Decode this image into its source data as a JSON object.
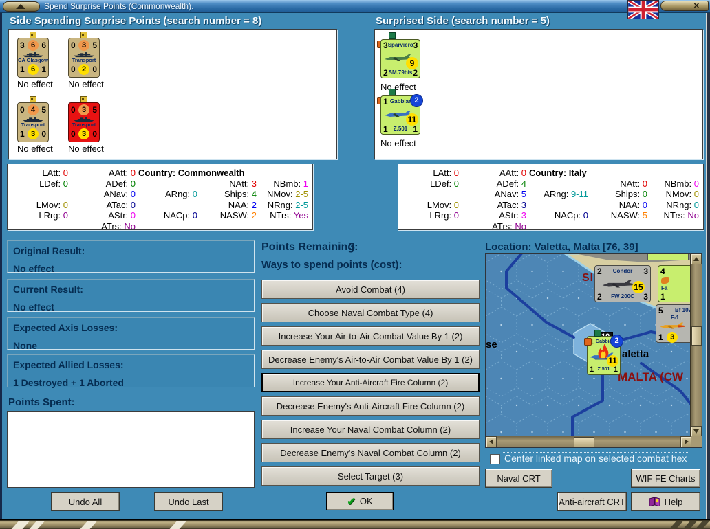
{
  "window": {
    "title": "Spend Surprise Points (Commonwealth).",
    "close_glyph": "✕"
  },
  "headers": {
    "spender": "Side Spending Surprise Points (search number = 8)",
    "surprised": "Surprised Side (search number = 5)"
  },
  "spender_units": [
    {
      "tl": "3",
      "tm": "6",
      "tr": "6",
      "name": "CA Glasgow",
      "bl": "1",
      "bm": "6",
      "br": "1",
      "status": "No effect",
      "variant": "tan"
    },
    {
      "tl": "0",
      "tm": "3",
      "tr": "5",
      "name": "Transport",
      "bl": "0",
      "bm": "2",
      "br": "0",
      "status": "No effect",
      "variant": "tan"
    },
    {
      "tl": "0",
      "tm": "4",
      "tr": "5",
      "name": "Transport",
      "bl": "1",
      "bm": "3",
      "br": "0",
      "status": "No effect",
      "variant": "tan"
    },
    {
      "tl": "0",
      "tm": "3",
      "tr": "5",
      "name": "Transport",
      "bl": "0",
      "bm": "3",
      "br": "0",
      "status": "No effect",
      "variant": "red"
    }
  ],
  "surprised_units": [
    {
      "tl": "3",
      "name": "Sparviero",
      "tr": "3",
      "mid": "9",
      "bl": "2",
      "bname": "SM.79bis",
      "br": "2",
      "status": "No effect",
      "badge": ""
    },
    {
      "tl": "1",
      "name": "Gabbiano",
      "tr": "",
      "mid": "11",
      "bl": "1",
      "bname": "Z.501",
      "br": "1",
      "status": "No effect",
      "badge": "2"
    }
  ],
  "stats_left": {
    "country": "Country: Commonwealth",
    "cells": [
      {
        "r": 1,
        "c": 1,
        "l": "LAtt:",
        "v": "0",
        "k": "red"
      },
      {
        "r": 1,
        "c": 2,
        "l": "AAtt:",
        "v": "0",
        "k": "red"
      },
      {
        "r": 2,
        "c": 1,
        "l": "LDef:",
        "v": "0",
        "k": "green"
      },
      {
        "r": 2,
        "c": 2,
        "l": "ADef:",
        "v": "0",
        "k": "green"
      },
      {
        "r": 2,
        "c": 4,
        "l": "NAtt:",
        "v": "3",
        "k": "red"
      },
      {
        "r": 2,
        "c": 5,
        "l": "NBmb:",
        "v": "1",
        "k": "mag"
      },
      {
        "r": 3,
        "c": 2,
        "l": "ANav:",
        "v": "0",
        "k": "blue"
      },
      {
        "r": 3,
        "c": 3,
        "l": "ARng:",
        "v": "0",
        "k": "teal"
      },
      {
        "r": 3,
        "c": 4,
        "l": "Ships:",
        "v": "4",
        "k": "green"
      },
      {
        "r": 3,
        "c": 5,
        "l": "NMov:",
        "v": "2-5",
        "k": "olive"
      },
      {
        "r": 4,
        "c": 1,
        "l": "LMov:",
        "v": "0",
        "k": "olive"
      },
      {
        "r": 4,
        "c": 2,
        "l": "ATac:",
        "v": "0",
        "k": "navy"
      },
      {
        "r": 4,
        "c": 4,
        "l": "NAA:",
        "v": "2",
        "k": "blue"
      },
      {
        "r": 4,
        "c": 5,
        "l": "NRng:",
        "v": "2-5",
        "k": "teal"
      },
      {
        "r": 5,
        "c": 1,
        "l": "LRrg:",
        "v": "0",
        "k": "pur"
      },
      {
        "r": 5,
        "c": 2,
        "l": "AStr:",
        "v": "0",
        "k": "mag"
      },
      {
        "r": 5,
        "c": 3,
        "l": "NACp:",
        "v": "0",
        "k": "navy"
      },
      {
        "r": 5,
        "c": 4,
        "l": "NASW:",
        "v": "2",
        "k": "orange"
      },
      {
        "r": 5,
        "c": 5,
        "l": "NTrs:",
        "v": "Yes",
        "k": "pur"
      },
      {
        "r": 6,
        "c": 2,
        "l": "ATrs:",
        "v": "No",
        "k": "pur"
      }
    ]
  },
  "stats_right": {
    "country": "Country: Italy",
    "cells": [
      {
        "r": 1,
        "c": 1,
        "l": "LAtt:",
        "v": "0",
        "k": "red"
      },
      {
        "r": 1,
        "c": 2,
        "l": "AAtt:",
        "v": "0",
        "k": "red"
      },
      {
        "r": 2,
        "c": 1,
        "l": "LDef:",
        "v": "0",
        "k": "green"
      },
      {
        "r": 2,
        "c": 2,
        "l": "ADef:",
        "v": "4",
        "k": "green"
      },
      {
        "r": 2,
        "c": 4,
        "l": "NAtt:",
        "v": "0",
        "k": "red"
      },
      {
        "r": 2,
        "c": 5,
        "l": "NBmb:",
        "v": "0",
        "k": "mag"
      },
      {
        "r": 3,
        "c": 2,
        "l": "ANav:",
        "v": "5",
        "k": "blue"
      },
      {
        "r": 3,
        "c": 3,
        "l": "ARng:",
        "v": "9-11",
        "k": "teal"
      },
      {
        "r": 3,
        "c": 4,
        "l": "Ships:",
        "v": "0",
        "k": "green"
      },
      {
        "r": 3,
        "c": 5,
        "l": "NMov:",
        "v": "0",
        "k": "olive"
      },
      {
        "r": 4,
        "c": 1,
        "l": "LMov:",
        "v": "0",
        "k": "olive"
      },
      {
        "r": 4,
        "c": 2,
        "l": "ATac:",
        "v": "3",
        "k": "navy"
      },
      {
        "r": 4,
        "c": 4,
        "l": "NAA:",
        "v": "0",
        "k": "blue"
      },
      {
        "r": 4,
        "c": 5,
        "l": "NRng:",
        "v": "0",
        "k": "teal"
      },
      {
        "r": 5,
        "c": 1,
        "l": "LRrg:",
        "v": "0",
        "k": "pur"
      },
      {
        "r": 5,
        "c": 2,
        "l": "AStr:",
        "v": "3",
        "k": "mag"
      },
      {
        "r": 5,
        "c": 3,
        "l": "NACp:",
        "v": "0",
        "k": "navy"
      },
      {
        "r": 5,
        "c": 4,
        "l": "NASW:",
        "v": "5",
        "k": "orange"
      },
      {
        "r": 5,
        "c": 5,
        "l": "NTrs:",
        "v": "No",
        "k": "pur"
      },
      {
        "r": 6,
        "c": 2,
        "l": "ATrs:",
        "v": "No",
        "k": "pur"
      }
    ]
  },
  "results": [
    {
      "title": "Original Result:",
      "value": "No effect"
    },
    {
      "title": "Current Result:",
      "value": "No effect"
    },
    {
      "title": "Expected Axis Losses:",
      "value": "None"
    },
    {
      "title": "Expected Allied Losses:",
      "value": "1 Destroyed + 1 Aborted"
    }
  ],
  "points_spent_label": "Points Spent:",
  "buttons": {
    "undo_all": "Undo All",
    "undo_last": "Undo Last",
    "ok": "OK",
    "naval_crt": "Naval CRT",
    "wif_fe_charts": "WIF FE Charts",
    "aa_crt": "Anti-aircraft CRT",
    "help_first": "H",
    "help_rest": "elp"
  },
  "middle": {
    "points_remaining_label": "Points Remaining:",
    "points_remaining_value": "3",
    "ways_label": "Ways to spend points (cost):",
    "focused_index": 4,
    "spend_options": [
      "Avoid Combat (4)",
      "Choose Naval Combat Type (4)",
      "Increase Your Air-to-Air Combat Value By 1 (2)",
      "Decrease Enemy's Air-to-Air Combat Value By 1 (2)",
      "Increase Your Anti-Aircraft Fire Column (2)",
      "Decrease Enemy's Anti-Aircraft Fire Column (2)",
      "Increase Your Naval Combat Column (2)",
      "Decrease Enemy's Naval Combat Column (2)",
      "Select Target (3)"
    ]
  },
  "map": {
    "location": "Location: Valetta, Malta [76, 39]",
    "checkbox_label": "Center linked map on selected combat hex",
    "labels": {
      "sicily": "SICILY",
      "malta": "MALTA (CW",
      "valetta_partial": "aletta",
      "sea_partial": "se",
      "stack_count": "10"
    },
    "condor": {
      "tl": "2",
      "name": "Condor",
      "tr": "3",
      "mid": "15",
      "bl": "2",
      "bname": "FW 200C",
      "br": "3"
    },
    "bf109": {
      "tl": "5",
      "name": "Bf 109",
      "name2": "F-1",
      "bl": "1",
      "mid": "3"
    },
    "partial": {
      "tl": "4",
      "name": "Fa",
      "bl": "1"
    },
    "gabbiano": {
      "tl": "1",
      "name": "Gabbiano",
      "badge": "2",
      "mid": "11",
      "bl": "1",
      "bname": "Z.501",
      "br": "1"
    }
  },
  "colors": {
    "background": "#3e8ab6",
    "titlebar_mid": "#2a6aa4",
    "navy_text": "#052c51",
    "stat_red": "#e00000",
    "stat_green": "#008000",
    "stat_blue": "#0000f0",
    "stat_navy": "#000090",
    "stat_magenta": "#f000f0",
    "stat_purple": "#900090",
    "stat_teal": "#009898",
    "stat_olive": "#a09000",
    "stat_orange": "#ff8000",
    "counter_tan": "#c9b580",
    "counter_red": "#e81212",
    "counter_green": "#c8ee6e",
    "counter_gray": "#b6b6b0",
    "circle_orange": "#f0984c",
    "circle_yellow": "#ffdf00",
    "badge_blue": "#1545d8",
    "map_label_red": "#8a1010"
  }
}
